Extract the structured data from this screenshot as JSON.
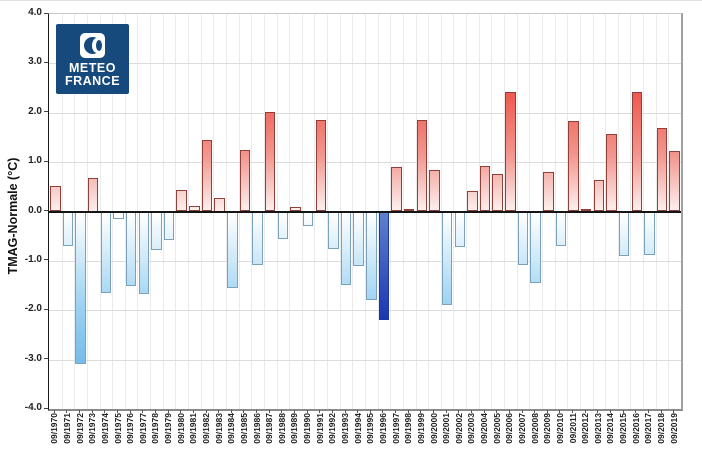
{
  "logo": {
    "line1": "METEO",
    "line2": "FRANCE",
    "bg_color": "#174a7c",
    "icon": "meteo-france-crescent-icon"
  },
  "chart_data": {
    "type": "bar",
    "title": "",
    "xlabel": "",
    "ylabel": "TMAG-Normale (°C)",
    "ylim": [
      -4.0,
      4.0
    ],
    "y_ticks": [
      4.0,
      3.0,
      2.0,
      1.0,
      0.0,
      -1.0,
      -2.0,
      -3.0,
      -4.0
    ],
    "y_tick_labels": [
      "4.0",
      "3.0",
      "2.0",
      "1.0",
      "0.0",
      "-1.0",
      "-2.0",
      "-3.0",
      "-4.0"
    ],
    "grid": true,
    "legend": false,
    "series_name": "TMAG-Normale",
    "categories": [
      "09/1970",
      "09/1971",
      "09/1972",
      "09/1973",
      "09/1974",
      "09/1975",
      "09/1976",
      "09/1977",
      "09/1978",
      "09/1979",
      "09/1980",
      "09/1981",
      "09/1982",
      "09/1983",
      "09/1984",
      "09/1985",
      "09/1986",
      "09/1987",
      "09/1988",
      "09/1989",
      "09/1990",
      "09/1991",
      "09/1992",
      "09/1993",
      "09/1994",
      "09/1995",
      "09/1996",
      "09/1997",
      "09/1998",
      "09/1999",
      "09/2000",
      "09/2001",
      "09/2002",
      "09/2003",
      "09/2004",
      "09/2005",
      "09/2006",
      "09/2007",
      "09/2008",
      "09/2009",
      "09/2010",
      "09/2011",
      "09/2012",
      "09/2013",
      "09/2014",
      "09/2015",
      "09/2016",
      "09/2017",
      "09/2018",
      "09/2019"
    ],
    "values": [
      0.51,
      -0.7,
      -3.08,
      0.68,
      -1.66,
      -0.16,
      -1.5,
      -1.67,
      -0.77,
      -0.57,
      0.43,
      0.12,
      1.44,
      0.28,
      -1.54,
      1.24,
      -1.08,
      2.01,
      -0.56,
      0.1,
      -0.3,
      1.86,
      -0.76,
      -1.49,
      -1.1,
      -1.79,
      -2.2,
      0.91,
      0.05,
      1.85,
      0.84,
      -1.9,
      -0.71,
      0.41,
      0.92,
      0.76,
      2.43,
      -1.08,
      -1.45,
      0.81,
      -0.69,
      1.84,
      0.06,
      0.64,
      1.56,
      -0.91,
      2.42,
      -0.88,
      1.7,
      1.22
    ],
    "highlighted_category": "09/1996",
    "colors": {
      "positive_top": "#ee564c",
      "positive_fade": "#fcefed",
      "negative_deep": "#70b8e8",
      "negative_fade": "#ffffff",
      "highlight_top": "#5e80cd",
      "highlight_deep": "#1b38b4",
      "zero_line": "#141414"
    }
  }
}
